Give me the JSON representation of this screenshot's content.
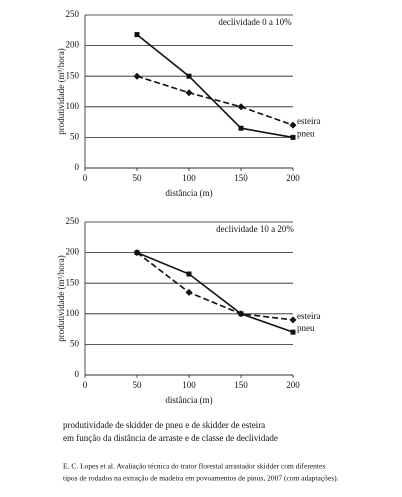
{
  "chart_data": [
    {
      "type": "line",
      "annotation": "declividade 0 a 10%",
      "x_label": "distância (m)",
      "y_label": "produtividade (m³/hora)",
      "x": [
        50,
        100,
        150,
        200
      ],
      "series": [
        {
          "name": "esteira",
          "color": "#111111",
          "line_style": "dashed",
          "marker": "diamond",
          "values": [
            150,
            123,
            100,
            70
          ]
        },
        {
          "name": "pneu",
          "color": "#111111",
          "line_style": "solid",
          "marker": "square",
          "values": [
            218,
            150,
            65,
            50
          ]
        }
      ],
      "xlim": [
        0,
        200
      ],
      "xticks": [
        0,
        50,
        100,
        150,
        200
      ],
      "ylim": [
        0,
        250
      ],
      "yticks": [
        0,
        50,
        100,
        150,
        200,
        250
      ],
      "grid": true
    },
    {
      "type": "line",
      "annotation": "declividade 10 a 20%",
      "x_label": "distância (m)",
      "y_label": "produtividade (m³/hora)",
      "x": [
        50,
        100,
        150,
        200
      ],
      "series": [
        {
          "name": "esteira",
          "color": "#111111",
          "line_style": "dashed",
          "marker": "diamond",
          "values": [
            200,
            135,
            100,
            90
          ]
        },
        {
          "name": "pneu",
          "color": "#111111",
          "line_style": "solid",
          "marker": "square",
          "values": [
            200,
            165,
            100,
            70
          ]
        }
      ],
      "xlim": [
        0,
        200
      ],
      "xticks": [
        0,
        50,
        100,
        150,
        200
      ],
      "ylim": [
        0,
        250
      ],
      "yticks": [
        0,
        50,
        100,
        150,
        200,
        250
      ],
      "grid": true
    }
  ],
  "caption": [
    "produtividade de skidder de pneu e de skidder de esteira",
    "em função da distância de arraste e de classe de declividade"
  ],
  "source": [
    "E. C. Lopes et al. Avaliação técnica do trator florestal arrastador skidder com diferentes",
    "tipos de rodados na extração de madeira em povoamentos de pinus, 2007 (com adaptações)."
  ]
}
